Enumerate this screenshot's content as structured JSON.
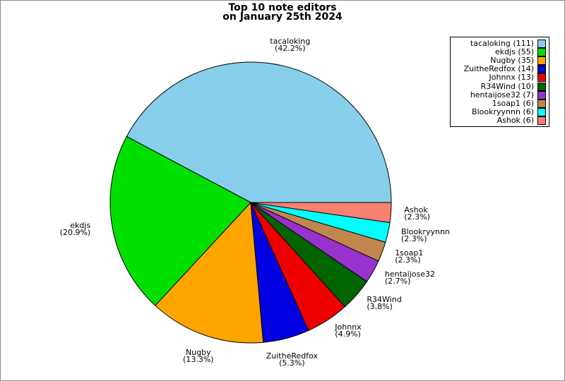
{
  "title": {
    "line1": "Top 10 note editors",
    "line2": "on January 25th 2024"
  },
  "chart_data": {
    "type": "pie",
    "title": "Top 10 note editors on January 25th 2024",
    "start_angle_deg": 0,
    "direction": "counterclockwise",
    "legend_position": "top-right",
    "slices": [
      {
        "label": "tacaloking",
        "count": 111,
        "pct_label": "(42.2%)",
        "color": "#87CEEB"
      },
      {
        "label": "ekdjs",
        "count": 55,
        "pct_label": "(20.9%)",
        "color": "#00E000"
      },
      {
        "label": "Nugby",
        "count": 35,
        "pct_label": "(13.3%)",
        "color": "#FFA500"
      },
      {
        "label": "ZuitheRedfox",
        "count": 14,
        "pct_label": "(5.3%)",
        "color": "#0000E0"
      },
      {
        "label": "Johnnx",
        "count": 13,
        "pct_label": "(4.9%)",
        "color": "#EE0000"
      },
      {
        "label": "R34Wind",
        "count": 10,
        "pct_label": "(3.8%)",
        "color": "#006400"
      },
      {
        "label": "hentaijose32",
        "count": 7,
        "pct_label": "(2.7%)",
        "color": "#9932CC"
      },
      {
        "label": "1soap1",
        "count": 6,
        "pct_label": "(2.3%)",
        "color": "#C1864D"
      },
      {
        "label": "Blookryynnn",
        "count": 6,
        "pct_label": "(2.3%)",
        "color": "#00FFFF"
      },
      {
        "label": "Ashok",
        "count": 6,
        "pct_label": "(2.3%)",
        "color": "#FA8072"
      }
    ],
    "legend": {
      "entries": [
        {
          "text": "tacaloking (111)",
          "color": "#87CEEB"
        },
        {
          "text": "ekdjs (55)",
          "color": "#00E000"
        },
        {
          "text": "Nugby (35)",
          "color": "#FFA500"
        },
        {
          "text": "ZuitheRedfox (14)",
          "color": "#0000E0"
        },
        {
          "text": "Johnnx (13)",
          "color": "#EE0000"
        },
        {
          "text": "R34Wind (10)",
          "color": "#006400"
        },
        {
          "text": "hentaijose32 (7)",
          "color": "#9932CC"
        },
        {
          "text": "1soap1 (6)",
          "color": "#C1864D"
        },
        {
          "text": "Blookryynnn (6)",
          "color": "#00FFFF"
        },
        {
          "text": "Ashok (6)",
          "color": "#FA8072"
        }
      ]
    }
  }
}
